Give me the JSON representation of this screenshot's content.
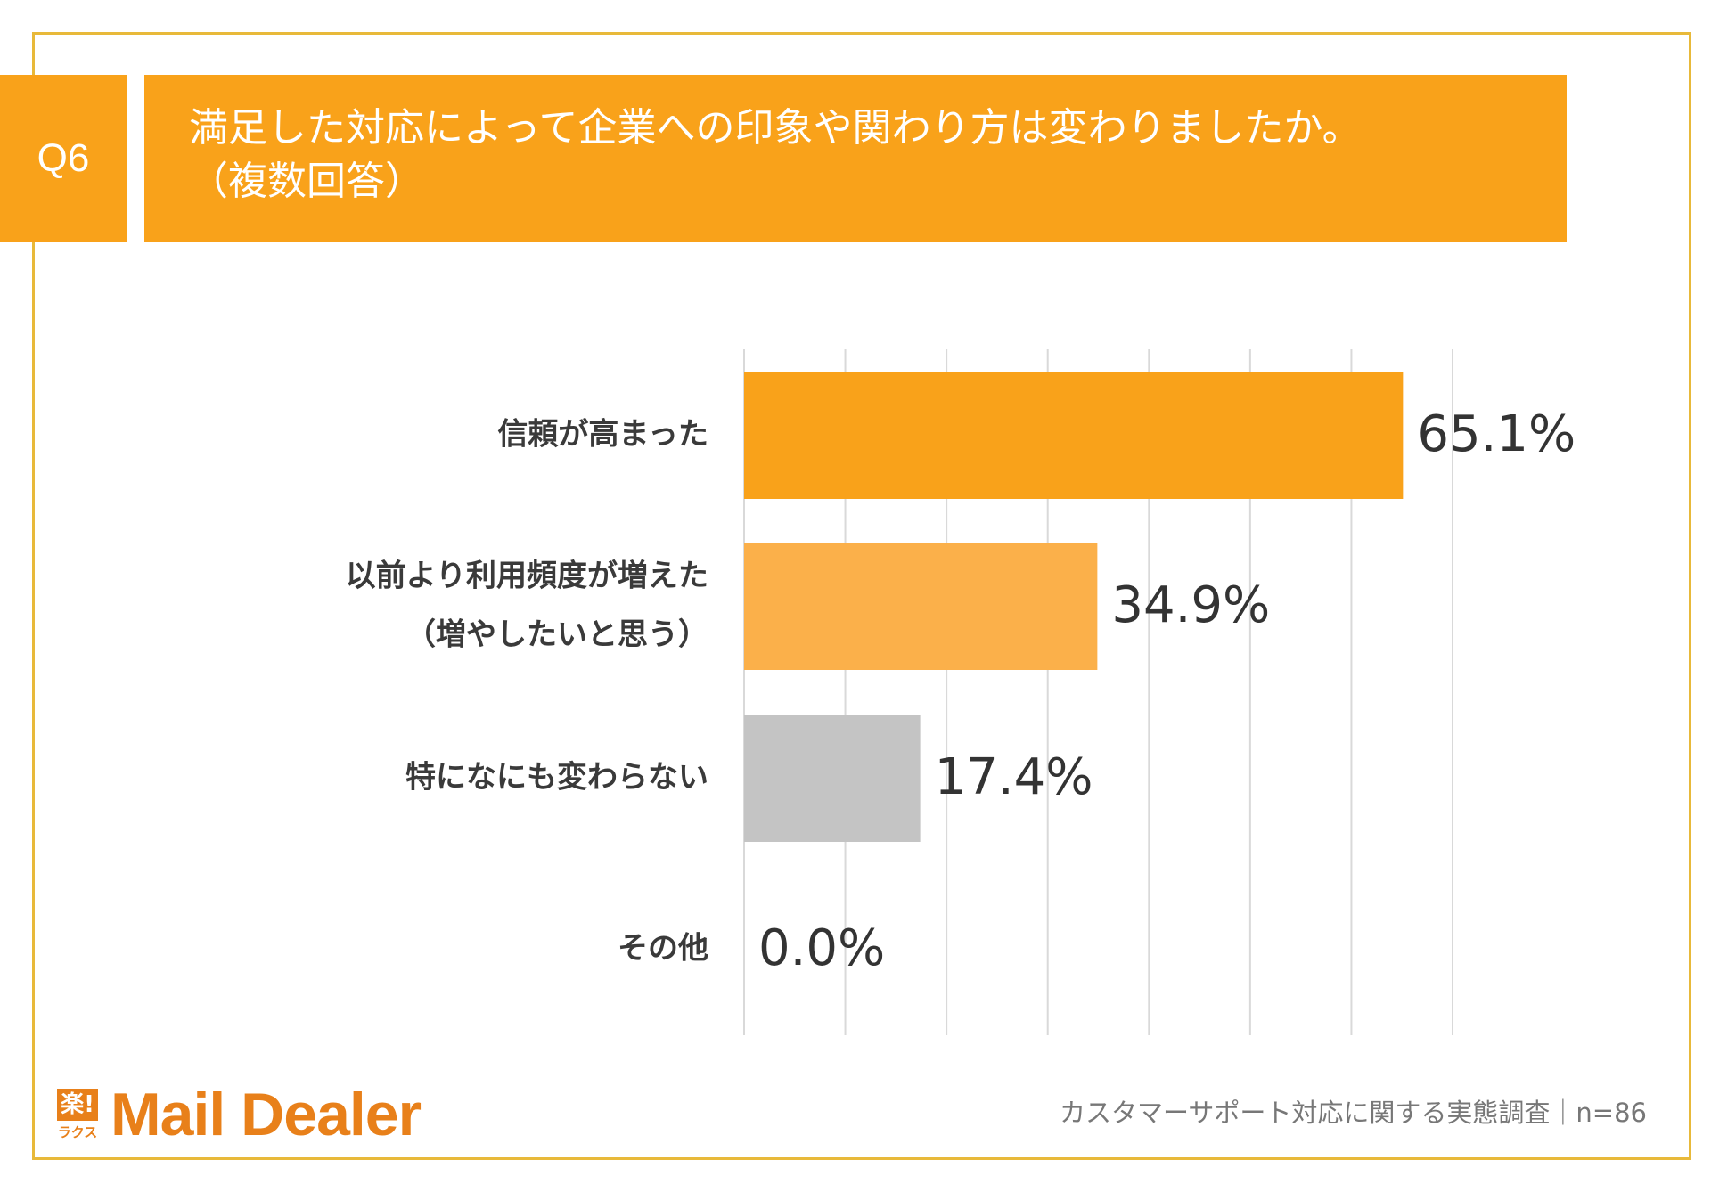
{
  "question": {
    "number": "Q6",
    "title_line1": "満足した対応によって企業への印象や関わり方は変わりましたか。",
    "title_line2": "（複数回答）"
  },
  "chart_data": {
    "type": "bar",
    "orientation": "horizontal",
    "categories": [
      [
        "信頼が高まった"
      ],
      [
        "以前より利用頻度が増えた",
        "（増やしたいと思う）"
      ],
      [
        "特になにも変わらない"
      ],
      [
        "その他"
      ]
    ],
    "values": [
      65.1,
      34.9,
      17.4,
      0.0
    ],
    "value_labels": [
      "65.1%",
      "34.9%",
      "17.4%",
      "0.0%"
    ],
    "xlim": [
      0,
      70
    ],
    "gridlines": [
      0,
      10,
      20,
      30,
      40,
      50,
      60,
      70
    ],
    "grid": true,
    "colors": {
      "bar_1": "#f9a21a",
      "bar_2": "#fbb04a",
      "bar_3": "#c4c4c4",
      "bar_4": "#c4c4c4",
      "grid": "#d9d9d9"
    }
  },
  "footer": {
    "logo_kanji": "楽!",
    "logo_kana": "ラクス",
    "logo_text": "Mail Dealer",
    "source": "カスタマーサポート対応に関する実態調査｜n=86"
  },
  "colors": {
    "accent": "#f9a21a",
    "frame": "#e8b93a",
    "logo": "#e8801a"
  }
}
